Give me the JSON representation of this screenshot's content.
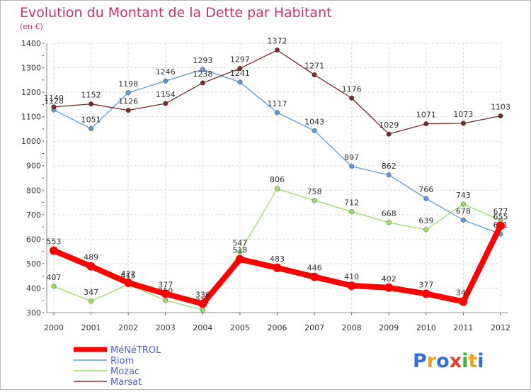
{
  "chart_data": {
    "type": "line",
    "title": "Evolution du Montant de la Dette par Habitant",
    "subtitle": "(en €)",
    "categories": [
      "2000",
      "2001",
      "2002",
      "2003",
      "2004",
      "2005",
      "2006",
      "2007",
      "2008",
      "2009",
      "2010",
      "2011",
      "2012"
    ],
    "ylim": [
      300,
      1400
    ],
    "yticks": [
      300,
      400,
      500,
      600,
      700,
      800,
      900,
      1000,
      1100,
      1200,
      1300,
      1400
    ],
    "grid": true,
    "legend_position": "bottom-left",
    "series": [
      {
        "name": "MéNéTROL",
        "color": "#ff0000",
        "values": [
          553,
          489,
          422,
          377,
          336,
          518,
          483,
          446,
          410,
          402,
          377,
          345,
          655
        ]
      },
      {
        "name": "Riom",
        "color": "#5b9bd5",
        "values": [
          1128,
          1051,
          1198,
          1246,
          1293,
          1241,
          1117,
          1043,
          897,
          862,
          766,
          678,
          621
        ]
      },
      {
        "name": "Mozac",
        "color": "#99dd66",
        "values": [
          407,
          347,
          415,
          350,
          311,
          547,
          806,
          758,
          712,
          668,
          639,
          743,
          677
        ]
      },
      {
        "name": "Marsat",
        "color": "#7a2a2a",
        "values": [
          1140,
          1152,
          1126,
          1154,
          1238,
          1297,
          1372,
          1271,
          1176,
          1029,
          1071,
          1073,
          1103
        ]
      }
    ]
  },
  "brand": {
    "letters": [
      "P",
      "r",
      "o",
      "x",
      "i",
      "t",
      "i"
    ]
  }
}
